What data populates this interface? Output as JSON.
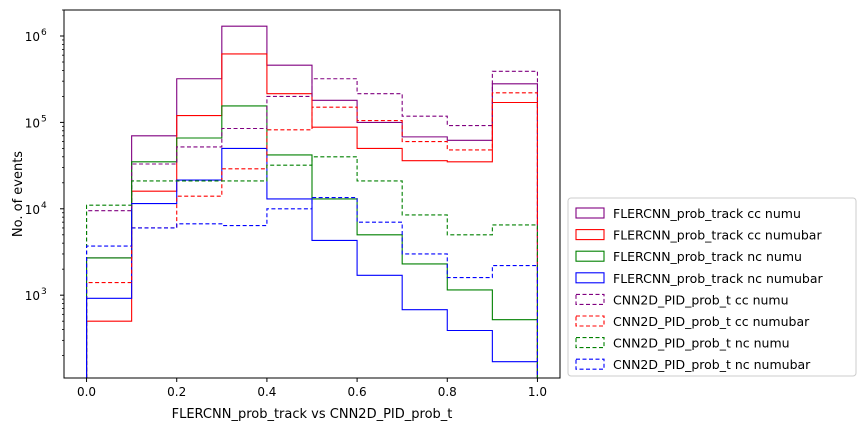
{
  "chart_data": {
    "type": "step-histogram",
    "xlabel": "FLERCNN_prob_track vs CNN2D_PID_prob_t",
    "ylabel": "No. of events",
    "yscale": "log",
    "xlim": [
      -0.05,
      1.05
    ],
    "ylim": [
      110,
      2000000
    ],
    "legend_position": "outside-lower-right",
    "grid": false,
    "bin_edges": [
      0.0,
      0.1,
      0.2,
      0.3,
      0.4,
      0.5,
      0.6,
      0.7,
      0.8,
      0.9,
      1.0
    ],
    "x_ticks": [
      {
        "value": 0.0,
        "label": "0.0"
      },
      {
        "value": 0.2,
        "label": "0.2"
      },
      {
        "value": 0.4,
        "label": "0.4"
      },
      {
        "value": 0.6,
        "label": "0.6"
      },
      {
        "value": 0.8,
        "label": "0.8"
      },
      {
        "value": 1.0,
        "label": "1.0"
      }
    ],
    "y_ticks": [
      {
        "value": 1000,
        "base": "10",
        "exp": "3"
      },
      {
        "value": 10000,
        "base": "10",
        "exp": "4"
      },
      {
        "value": 100000,
        "base": "10",
        "exp": "5"
      },
      {
        "value": 1000000,
        "base": "10",
        "exp": "6"
      }
    ],
    "series": [
      {
        "name": "FLERCNN_prob_track cc numu",
        "color": "#800080",
        "dash": "solid",
        "values": [
          2700,
          70000,
          320000,
          1300000,
          460000,
          180000,
          100000,
          68000,
          62000,
          280000
        ]
      },
      {
        "name": "FLERCNN_prob_track cc numubar",
        "color": "#ff0000",
        "dash": "solid",
        "values": [
          500,
          16000,
          120000,
          620000,
          215000,
          88000,
          50000,
          36000,
          35000,
          170000
        ]
      },
      {
        "name": "FLERCNN_prob_track nc numu",
        "color": "#008000",
        "dash": "solid",
        "values": [
          2700,
          35000,
          66000,
          155000,
          42000,
          13000,
          5000,
          2300,
          1150,
          520
        ]
      },
      {
        "name": "FLERCNN_prob_track nc numubar",
        "color": "#0000ff",
        "dash": "solid",
        "values": [
          920,
          11500,
          21500,
          50000,
          13000,
          4300,
          1700,
          680,
          390,
          170
        ]
      },
      {
        "name": "CNN2D_PID_prob_t cc numu",
        "color": "#800080",
        "dash": "dashed",
        "values": [
          9500,
          33000,
          52000,
          85000,
          200000,
          320000,
          215000,
          118000,
          92000,
          390000
        ]
      },
      {
        "name": "CNN2D_PID_prob_t cc numubar",
        "color": "#ff0000",
        "dash": "dashed",
        "values": [
          1400,
          6000,
          14000,
          29000,
          82000,
          150000,
          105000,
          60000,
          48000,
          220000
        ]
      },
      {
        "name": "CNN2D_PID_prob_t nc numu",
        "color": "#008000",
        "dash": "dashed",
        "values": [
          11000,
          21000,
          21000,
          21000,
          32000,
          40000,
          21000,
          8500,
          5000,
          6500
        ]
      },
      {
        "name": "CNN2D_PID_prob_t nc numubar",
        "color": "#0000ff",
        "dash": "dashed",
        "values": [
          3700,
          6000,
          6700,
          6400,
          10000,
          13500,
          7000,
          3000,
          1600,
          2200
        ]
      }
    ]
  }
}
